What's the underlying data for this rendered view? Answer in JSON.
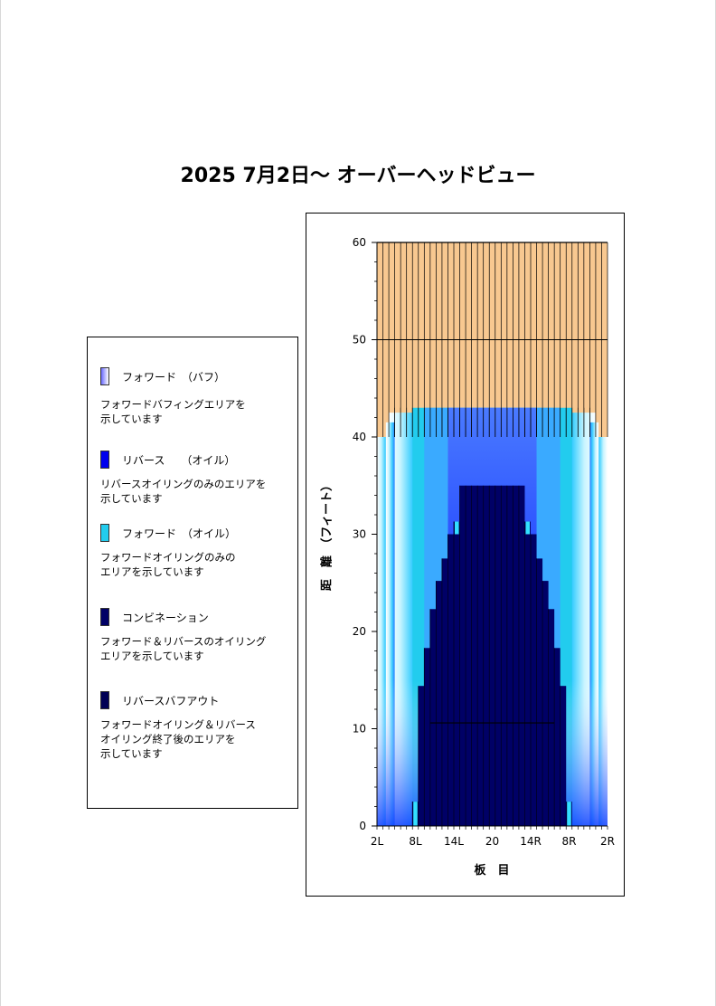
{
  "title": "2025 7月2日～ オーバーヘッドビュー",
  "legend": {
    "items": [
      {
        "name": "フォワード　（バフ）",
        "desc": [
          "フォワードバフィングエリアを",
          "示しています"
        ],
        "swatch": "buff"
      },
      {
        "name": "リバース　　（オイル）",
        "desc": [
          "リバースオイリングのみのエリアを",
          "示しています"
        ],
        "swatch": "#0000ee"
      },
      {
        "name": "フォワード　（オイル）",
        "desc": [
          "フォワードオイリングのみの",
          "エリアを示しています"
        ],
        "swatch": "#22ccee"
      },
      {
        "name": "コンビネーション",
        "desc": [
          "フォワード＆リバースのオイリング",
          "エリアを示しています"
        ],
        "swatch": "#000066"
      },
      {
        "name": "リバースバフアウト",
        "desc": [
          "フォワードオイリング＆リバース",
          "オイリング終了後のエリアを",
          "示しています"
        ],
        "swatch": "#000055"
      }
    ]
  },
  "chart_data": {
    "type": "heatmap",
    "title": "",
    "xlabel": "板　目",
    "ylabel": "距　離　（フィート）",
    "ylim": [
      0,
      60
    ],
    "yticks": [
      0,
      10,
      20,
      30,
      40,
      50,
      60
    ],
    "xticks": [
      "2L",
      "8L",
      "14L",
      "20",
      "14R",
      "8R",
      "2R"
    ],
    "boards": 39,
    "lane_length_ft": 60,
    "colors": {
      "backend": "#f8c890",
      "backend_lines": "#000000",
      "combination": "#000066",
      "reverse_oil": "#1a1aff",
      "forward_oil": "#22ccee",
      "buff_inner": "#2a6dff",
      "buff_outer": "#ffffff"
    },
    "oil_pattern_length_ft": 43,
    "outer_edge_length_ft": 40,
    "reverse_oil_core_ft": 35,
    "combination_top_ft": 31.3,
    "reverse_buffout_line_ft": 10.6,
    "combination_profile_ft": [
      [
        1,
        0
      ],
      [
        2,
        0
      ],
      [
        3,
        0
      ],
      [
        4,
        0
      ],
      [
        5,
        0
      ],
      [
        6,
        0
      ],
      [
        7,
        2.5
      ],
      [
        8,
        14.4
      ],
      [
        9,
        18.3
      ],
      [
        10,
        22.3
      ],
      [
        11,
        25.2
      ],
      [
        12,
        27.5
      ],
      [
        13,
        30.0
      ],
      [
        14,
        31.3
      ],
      [
        15,
        35
      ],
      [
        16,
        35
      ],
      [
        17,
        35
      ],
      [
        18,
        35
      ],
      [
        19,
        35
      ],
      [
        20,
        35
      ],
      [
        21,
        35
      ],
      [
        22,
        35
      ],
      [
        23,
        35
      ],
      [
        24,
        35
      ],
      [
        25,
        35
      ],
      [
        26,
        31.3
      ],
      [
        27,
        30.0
      ],
      [
        28,
        27.5
      ],
      [
        29,
        25.2
      ],
      [
        30,
        22.3
      ],
      [
        31,
        18.3
      ],
      [
        32,
        14.4
      ],
      [
        33,
        2.5
      ],
      [
        34,
        0
      ],
      [
        35,
        0
      ],
      [
        36,
        0
      ],
      [
        37,
        0
      ],
      [
        38,
        0
      ],
      [
        39,
        0
      ]
    ]
  }
}
